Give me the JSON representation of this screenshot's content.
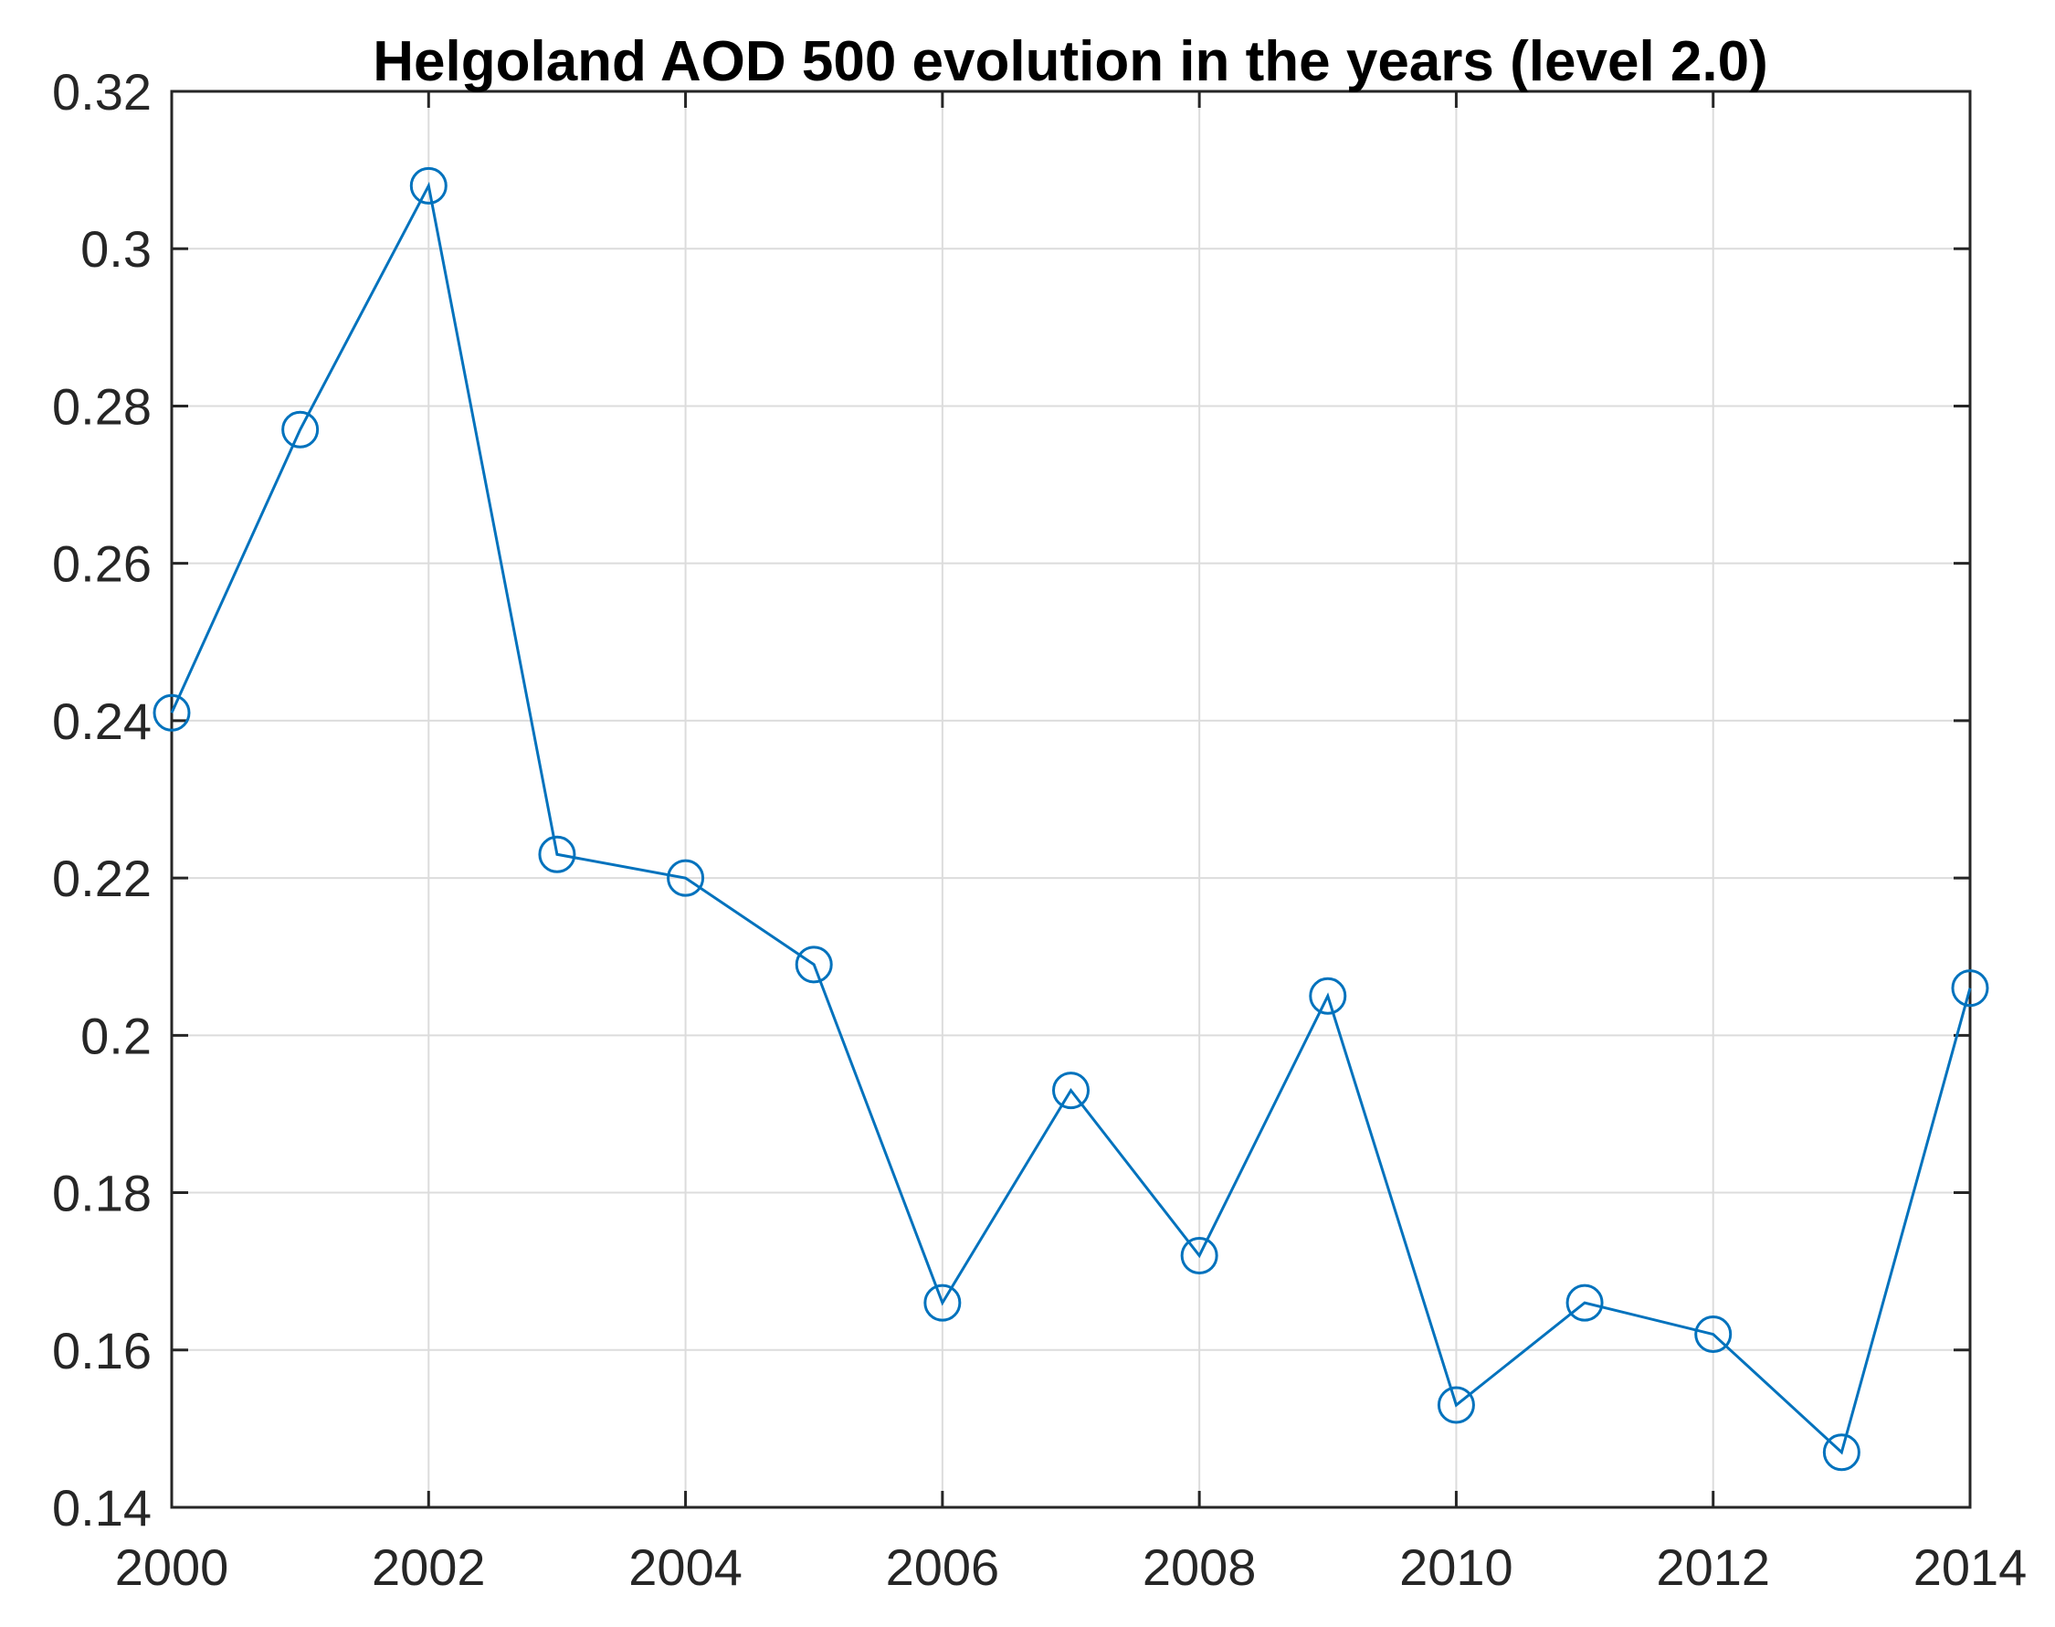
{
  "page": {
    "background_color": "#ffffff"
  },
  "chart_data": {
    "type": "line",
    "title": "Helgoland AOD 500 evolution in the years (level 2.0)",
    "xlabel": "",
    "ylabel": "",
    "x": [
      2000,
      2001,
      2002,
      2003,
      2004,
      2005,
      2006,
      2007,
      2008,
      2009,
      2010,
      2011,
      2012,
      2013,
      2014
    ],
    "series": [
      {
        "name": "AOD 500",
        "values": [
          0.241,
          0.277,
          0.308,
          0.223,
          0.22,
          0.209,
          0.166,
          0.193,
          0.172,
          0.205,
          0.153,
          0.166,
          0.162,
          0.147,
          0.206
        ]
      }
    ],
    "xlim": [
      2000,
      2014
    ],
    "ylim": [
      0.14,
      0.32
    ],
    "x_ticks": [
      2000,
      2002,
      2004,
      2006,
      2008,
      2010,
      2012,
      2014
    ],
    "x_tick_labels": [
      "2000",
      "2002",
      "2004",
      "2006",
      "2008",
      "2010",
      "2012",
      "2014"
    ],
    "y_ticks": [
      0.14,
      0.16,
      0.18,
      0.2,
      0.22,
      0.24,
      0.26,
      0.28,
      0.3,
      0.32
    ],
    "y_tick_labels": [
      "0.14",
      "0.16",
      "0.18",
      "0.2",
      "0.22",
      "0.24",
      "0.26",
      "0.28",
      "0.3",
      "0.32"
    ],
    "grid": true,
    "legend_position": "none",
    "marker": "circle",
    "line_color": "#0072BD",
    "grid_color": "#dcdcdc",
    "axis_color": "#262626",
    "tick_label_color": "#262626",
    "title_color": "#000000"
  }
}
